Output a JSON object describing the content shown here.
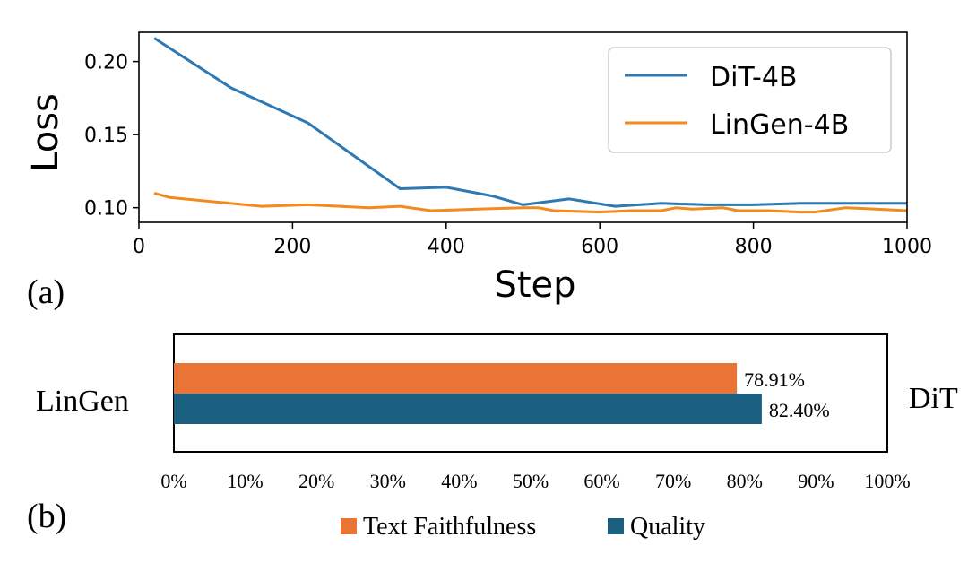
{
  "chart_data": [
    {
      "type": "line",
      "panel_label": "(a)",
      "xlabel": "Step",
      "ylabel": "Loss",
      "xlim": [
        0,
        1000
      ],
      "ylim": [
        0.09,
        0.22
      ],
      "xticks": [
        0,
        200,
        400,
        600,
        800,
        1000
      ],
      "yticks": [
        0.1,
        0.15,
        0.2
      ],
      "xtick_labels": [
        "0",
        "200",
        "400",
        "600",
        "800",
        "1000"
      ],
      "ytick_labels": [
        "0.10",
        "0.15",
        "0.20"
      ],
      "legend_position": "top-right",
      "series": [
        {
          "name": "DiT-4B",
          "color": "#2e78b4",
          "x": [
            20,
            120,
            220,
            340,
            400,
            460,
            500,
            560,
            620,
            680,
            740,
            800,
            860,
            920,
            980,
            1000
          ],
          "y": [
            0.216,
            0.182,
            0.158,
            0.113,
            0.114,
            0.108,
            0.102,
            0.106,
            0.101,
            0.103,
            0.102,
            0.102,
            0.103,
            0.103,
            0.103,
            0.103
          ]
        },
        {
          "name": "LinGen-4B",
          "color": "#f28a1e",
          "x": [
            20,
            40,
            100,
            160,
            220,
            300,
            340,
            380,
            440,
            500,
            520,
            540,
            600,
            640,
            680,
            700,
            720,
            760,
            780,
            820,
            860,
            880,
            920,
            960,
            1000
          ],
          "y": [
            0.11,
            0.107,
            0.104,
            0.101,
            0.102,
            0.1,
            0.101,
            0.098,
            0.099,
            0.1,
            0.1,
            0.098,
            0.097,
            0.098,
            0.098,
            0.1,
            0.099,
            0.1,
            0.098,
            0.098,
            0.097,
            0.097,
            0.1,
            0.099,
            0.098
          ]
        }
      ]
    },
    {
      "type": "bar",
      "orientation": "horizontal",
      "panel_label": "(b)",
      "left_label": "LinGen",
      "right_label": "DiT",
      "xlim": [
        0,
        100
      ],
      "xtick_labels": [
        "0%",
        "10%",
        "20%",
        "30%",
        "40%",
        "50%",
        "60%",
        "70%",
        "80%",
        "90%",
        "100%"
      ],
      "legend_position": "bottom",
      "series": [
        {
          "name": "Text Faithfulness",
          "value": 78.91,
          "label": "78.91%",
          "color": "#e97436"
        },
        {
          "name": "Quality",
          "value": 82.4,
          "label": "82.40%",
          "color": "#1a5f80"
        }
      ]
    }
  ]
}
